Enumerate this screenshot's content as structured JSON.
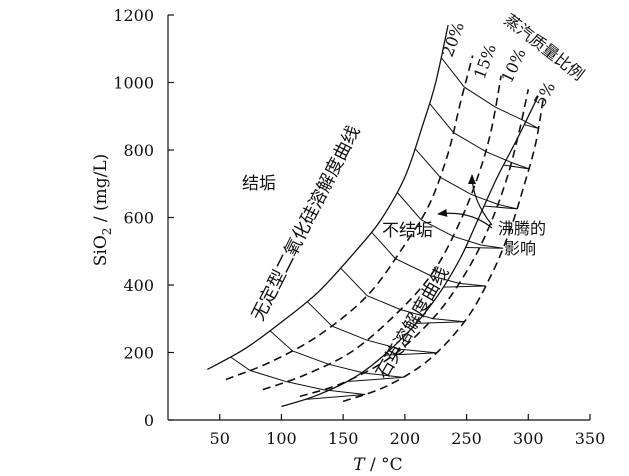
{
  "chart_data": {
    "type": "line",
    "xlabel_italic": "T",
    "xlabel_unit": " / °C",
    "ylabel_main": "SiO",
    "ylabel_sub": "2",
    "ylabel_unit": " / (mg/L)",
    "xlim": [
      0,
      350
    ],
    "ylim": [
      0,
      1200
    ],
    "xticks": [
      50,
      100,
      150,
      200,
      250,
      300,
      350
    ],
    "yticks": [
      0,
      200,
      400,
      600,
      800,
      1000,
      1200
    ],
    "grid": false,
    "series": [
      {
        "name": "无定型二氧化硅溶解度曲线",
        "style": "solid",
        "points": [
          [
            40,
            150
          ],
          [
            70,
            210
          ],
          [
            100,
            290
          ],
          [
            130,
            380
          ],
          [
            160,
            500
          ],
          [
            180,
            590
          ],
          [
            200,
            720
          ],
          [
            215,
            880
          ],
          [
            225,
            1000
          ],
          [
            235,
            1170
          ]
        ]
      },
      {
        "name": "20%",
        "style": "dashed",
        "points": [
          [
            55,
            120
          ],
          [
            90,
            170
          ],
          [
            130,
            250
          ],
          [
            170,
            370
          ],
          [
            200,
            520
          ],
          [
            220,
            640
          ],
          [
            235,
            790
          ],
          [
            245,
            940
          ],
          [
            255,
            1080
          ]
        ]
      },
      {
        "name": "15%",
        "style": "dashed",
        "points": [
          [
            85,
            90
          ],
          [
            120,
            135
          ],
          [
            160,
            210
          ],
          [
            200,
            340
          ],
          [
            225,
            450
          ],
          [
            245,
            590
          ],
          [
            260,
            730
          ],
          [
            270,
            860
          ],
          [
            278,
            1020
          ]
        ]
      },
      {
        "name": "10%",
        "style": "dashed",
        "points": [
          [
            115,
            70
          ],
          [
            150,
            110
          ],
          [
            190,
            190
          ],
          [
            225,
            310
          ],
          [
            250,
            440
          ],
          [
            268,
            570
          ],
          [
            283,
            720
          ],
          [
            293,
            860
          ],
          [
            300,
            980
          ]
        ]
      },
      {
        "name": "5%",
        "style": "dashed",
        "points": [
          [
            150,
            55
          ],
          [
            185,
            100
          ],
          [
            220,
            180
          ],
          [
            250,
            300
          ],
          [
            270,
            430
          ],
          [
            285,
            560
          ],
          [
            297,
            700
          ],
          [
            306,
            820
          ],
          [
            312,
            950
          ]
        ]
      },
      {
        "name": "石英溶解度曲线",
        "style": "solid",
        "points": [
          [
            100,
            40
          ],
          [
            130,
            75
          ],
          [
            165,
            140
          ],
          [
            200,
            250
          ],
          [
            225,
            360
          ],
          [
            245,
            480
          ],
          [
            260,
            600
          ],
          [
            275,
            720
          ],
          [
            292,
            840
          ],
          [
            308,
            960
          ]
        ]
      }
    ],
    "annotations": {
      "scale_title": "蒸汽质量比例",
      "pct_20": "20%",
      "pct_15": "15%",
      "pct_10": "10%",
      "pct_5": "5%",
      "amorphous_curve": "无定型二氧化硅溶解度曲线",
      "quartz_curve": "石英溶解度曲线",
      "scaling": "结垢",
      "no_scaling": "不结垢",
      "boiling_line1": "沸腾的",
      "boiling_line2": "影响"
    },
    "colors": {
      "scaling": "#d32f2f",
      "no_scaling": "#2e9d3a",
      "lines": "#111111"
    }
  }
}
